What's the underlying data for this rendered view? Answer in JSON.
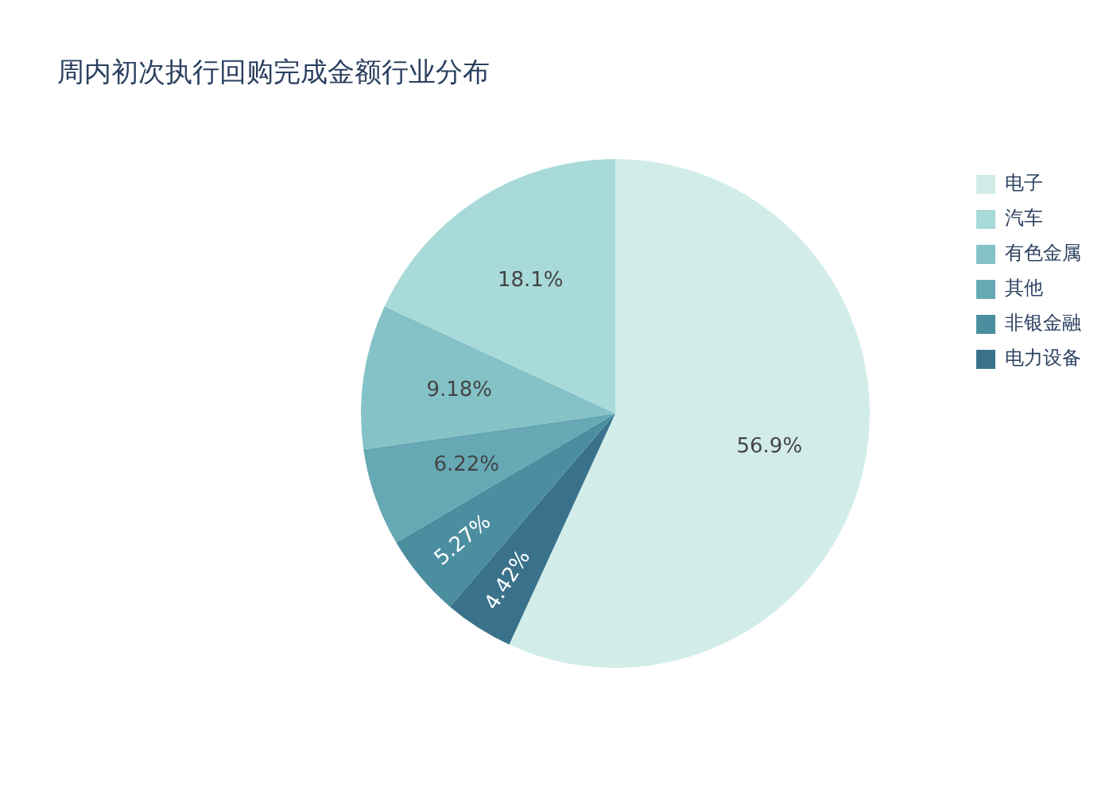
{
  "chart_data": {
    "type": "pie",
    "title": "周内初次执行回购完成金额行业分布",
    "categories": [
      "电子",
      "汽车",
      "有色金属",
      "其他",
      "非银金融",
      "电力设备"
    ],
    "values": [
      56.9,
      18.1,
      9.18,
      6.22,
      5.27,
      4.42
    ],
    "value_labels": [
      "56.9%",
      "18.1%",
      "9.18%",
      "6.22%",
      "5.27%",
      "4.42%"
    ],
    "colors": [
      "#d2ede9",
      "#a8dad9",
      "#84c2c7",
      "#66a9b4",
      "#4b8ea0",
      "#3a728c"
    ],
    "legend": "top right"
  }
}
